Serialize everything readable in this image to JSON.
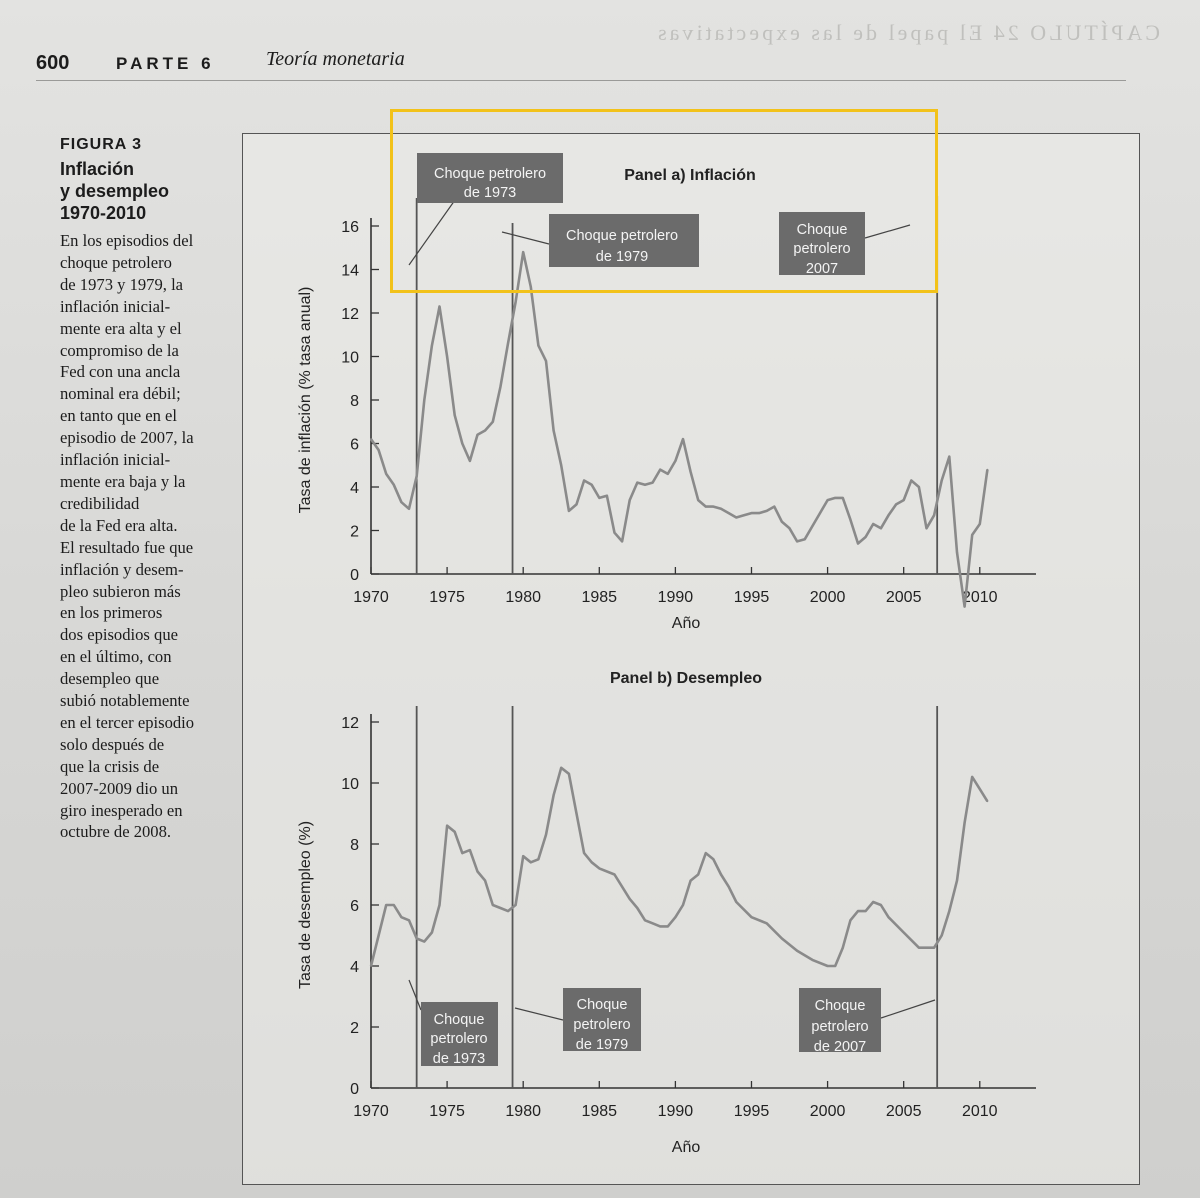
{
  "header": {
    "page_number": "600",
    "part": "PARTE 6",
    "chapter_title": "Teoría monetaria",
    "ghost_text": "CAPÍTULO 24  El papel de las expectativas"
  },
  "figure": {
    "label": "FIGURA 3",
    "title_lines": [
      "Inflación",
      "y desempleo",
      "1970-2010"
    ],
    "caption_lines": [
      "En los episodios del",
      "choque petrolero",
      "de 1973 y 1979, la",
      "inflación inicial-",
      "mente era alta y el",
      "compromiso de la",
      "Fed con una ancla",
      "nominal era débil;",
      "en tanto que en el",
      "episodio de 2007, la",
      "inflación inicial-",
      "mente era baja y la",
      "credibilidad",
      "de la Fed era alta.",
      "El resultado fue que",
      "inflación y desem-",
      "pleo subieron más",
      "en los primeros",
      "dos episodios que",
      "en el último, con",
      "desempleo que",
      "subió notablemente",
      "en el tercer episodio",
      "solo después de",
      "que la crisis de",
      "2007-2009 dio un",
      "giro inesperado en",
      "octubre de 2008."
    ]
  },
  "chart_data": [
    {
      "type": "line",
      "title": "Panel a) Inflación",
      "xlabel": "Año",
      "ylabel": "Tasa de inflación (% tasa anual)",
      "xlim": [
        1970,
        2011
      ],
      "ylim": [
        0,
        16
      ],
      "xticks": [
        1970,
        1975,
        1980,
        1985,
        1990,
        1995,
        2000,
        2005,
        2010
      ],
      "yticks": [
        0,
        2,
        4,
        6,
        8,
        10,
        12,
        14,
        16
      ],
      "series": [
        {
          "name": "Inflación",
          "x": [
            1970,
            1970.5,
            1971,
            1971.5,
            1972,
            1972.5,
            1973,
            1973.5,
            1974,
            1974.5,
            1975,
            1975.5,
            1976,
            1976.5,
            1977,
            1977.5,
            1978,
            1978.5,
            1979,
            1979.5,
            1980,
            1980.5,
            1981,
            1981.5,
            1982,
            1982.5,
            1983,
            1983.5,
            1984,
            1984.5,
            1985,
            1985.5,
            1986,
            1986.5,
            1987,
            1987.5,
            1988,
            1988.5,
            1989,
            1989.5,
            1990,
            1990.5,
            1991,
            1991.5,
            1992,
            1992.5,
            1993,
            1993.5,
            1994,
            1994.5,
            1995,
            1995.5,
            1996,
            1996.5,
            1997,
            1997.5,
            1998,
            1998.5,
            1999,
            1999.5,
            2000,
            2000.5,
            2001,
            2001.5,
            2002,
            2002.5,
            2003,
            2003.5,
            2004,
            2004.5,
            2005,
            2005.5,
            2006,
            2006.5,
            2007,
            2007.5,
            2008,
            2008.5,
            2009,
            2009.5,
            2010,
            2010.5
          ],
          "values": [
            6.2,
            5.7,
            4.6,
            4.1,
            3.3,
            3.0,
            4.5,
            8.0,
            10.5,
            12.3,
            10.0,
            7.3,
            6.0,
            5.2,
            6.4,
            6.6,
            7.0,
            8.6,
            10.6,
            12.5,
            14.8,
            13.2,
            10.5,
            9.8,
            6.6,
            5.0,
            2.9,
            3.2,
            4.3,
            4.1,
            3.5,
            3.6,
            1.9,
            1.5,
            3.4,
            4.2,
            4.1,
            4.2,
            4.8,
            4.6,
            5.2,
            6.2,
            4.7,
            3.4,
            3.1,
            3.1,
            3.0,
            2.8,
            2.6,
            2.7,
            2.8,
            2.8,
            2.9,
            3.1,
            2.4,
            2.1,
            1.5,
            1.6,
            2.2,
            2.8,
            3.4,
            3.5,
            3.5,
            2.5,
            1.4,
            1.7,
            2.3,
            2.1,
            2.7,
            3.2,
            3.4,
            4.3,
            4.0,
            2.1,
            2.7,
            4.3,
            5.4,
            1.0,
            -1.5,
            1.8,
            2.3,
            4.8
          ]
        }
      ],
      "annotations": [
        "Choque petrolero de 1973",
        "Choque petrolero de 1979",
        "Choque petrolero 2007"
      ],
      "event_years": [
        1973,
        1979.3,
        2007.2
      ]
    },
    {
      "type": "line",
      "title": "Panel b) Desempleo",
      "xlabel": "Año",
      "ylabel": "Tasa de desempleo (%)",
      "xlim": [
        1970,
        2011
      ],
      "ylim": [
        0,
        12
      ],
      "xticks": [
        1970,
        1975,
        1980,
        1985,
        1990,
        1995,
        2000,
        2005,
        2010
      ],
      "yticks": [
        0,
        2,
        4,
        6,
        8,
        10,
        12
      ],
      "series": [
        {
          "name": "Desempleo",
          "x": [
            1970,
            1970.5,
            1971,
            1971.5,
            1972,
            1972.5,
            1973,
            1973.5,
            1974,
            1974.5,
            1975,
            1975.5,
            1976,
            1976.5,
            1977,
            1977.5,
            1978,
            1978.5,
            1979,
            1979.5,
            1980,
            1980.5,
            1981,
            1981.5,
            1982,
            1982.5,
            1983,
            1983.5,
            1984,
            1984.5,
            1985,
            1986,
            1987,
            1987.5,
            1988,
            1988.5,
            1989,
            1989.5,
            1990,
            1990.5,
            1991,
            1991.5,
            1992,
            1992.5,
            1993,
            1993.5,
            1994,
            1995,
            1996,
            1997,
            1998,
            1999,
            2000,
            2000.5,
            2001,
            2001.5,
            2002,
            2002.5,
            2003,
            2003.5,
            2004,
            2005,
            2006,
            2006.5,
            2007,
            2007.5,
            2008,
            2008.5,
            2009,
            2009.5,
            2010,
            2010.5
          ],
          "values": [
            4.0,
            5.0,
            6.0,
            6.0,
            5.6,
            5.5,
            4.9,
            4.8,
            5.1,
            6.0,
            8.6,
            8.4,
            7.7,
            7.8,
            7.1,
            6.8,
            6.0,
            5.9,
            5.8,
            6.0,
            7.6,
            7.4,
            7.5,
            8.3,
            9.6,
            10.5,
            10.3,
            9.0,
            7.7,
            7.4,
            7.2,
            7.0,
            6.2,
            5.9,
            5.5,
            5.4,
            5.3,
            5.3,
            5.6,
            6.0,
            6.8,
            7.0,
            7.7,
            7.5,
            7.0,
            6.6,
            6.1,
            5.6,
            5.4,
            4.9,
            4.5,
            4.2,
            4.0,
            4.0,
            4.6,
            5.5,
            5.8,
            5.8,
            6.1,
            6.0,
            5.6,
            5.1,
            4.6,
            4.6,
            4.6,
            5.0,
            5.8,
            6.8,
            8.7,
            10.2,
            9.8,
            9.4
          ]
        }
      ],
      "annotations": [
        "Choque petrolero de 1973",
        "Choque petrolero de 1979",
        "Choque petrolero de 2007"
      ],
      "event_years": [
        1973,
        1979.3,
        2007.2
      ]
    }
  ]
}
